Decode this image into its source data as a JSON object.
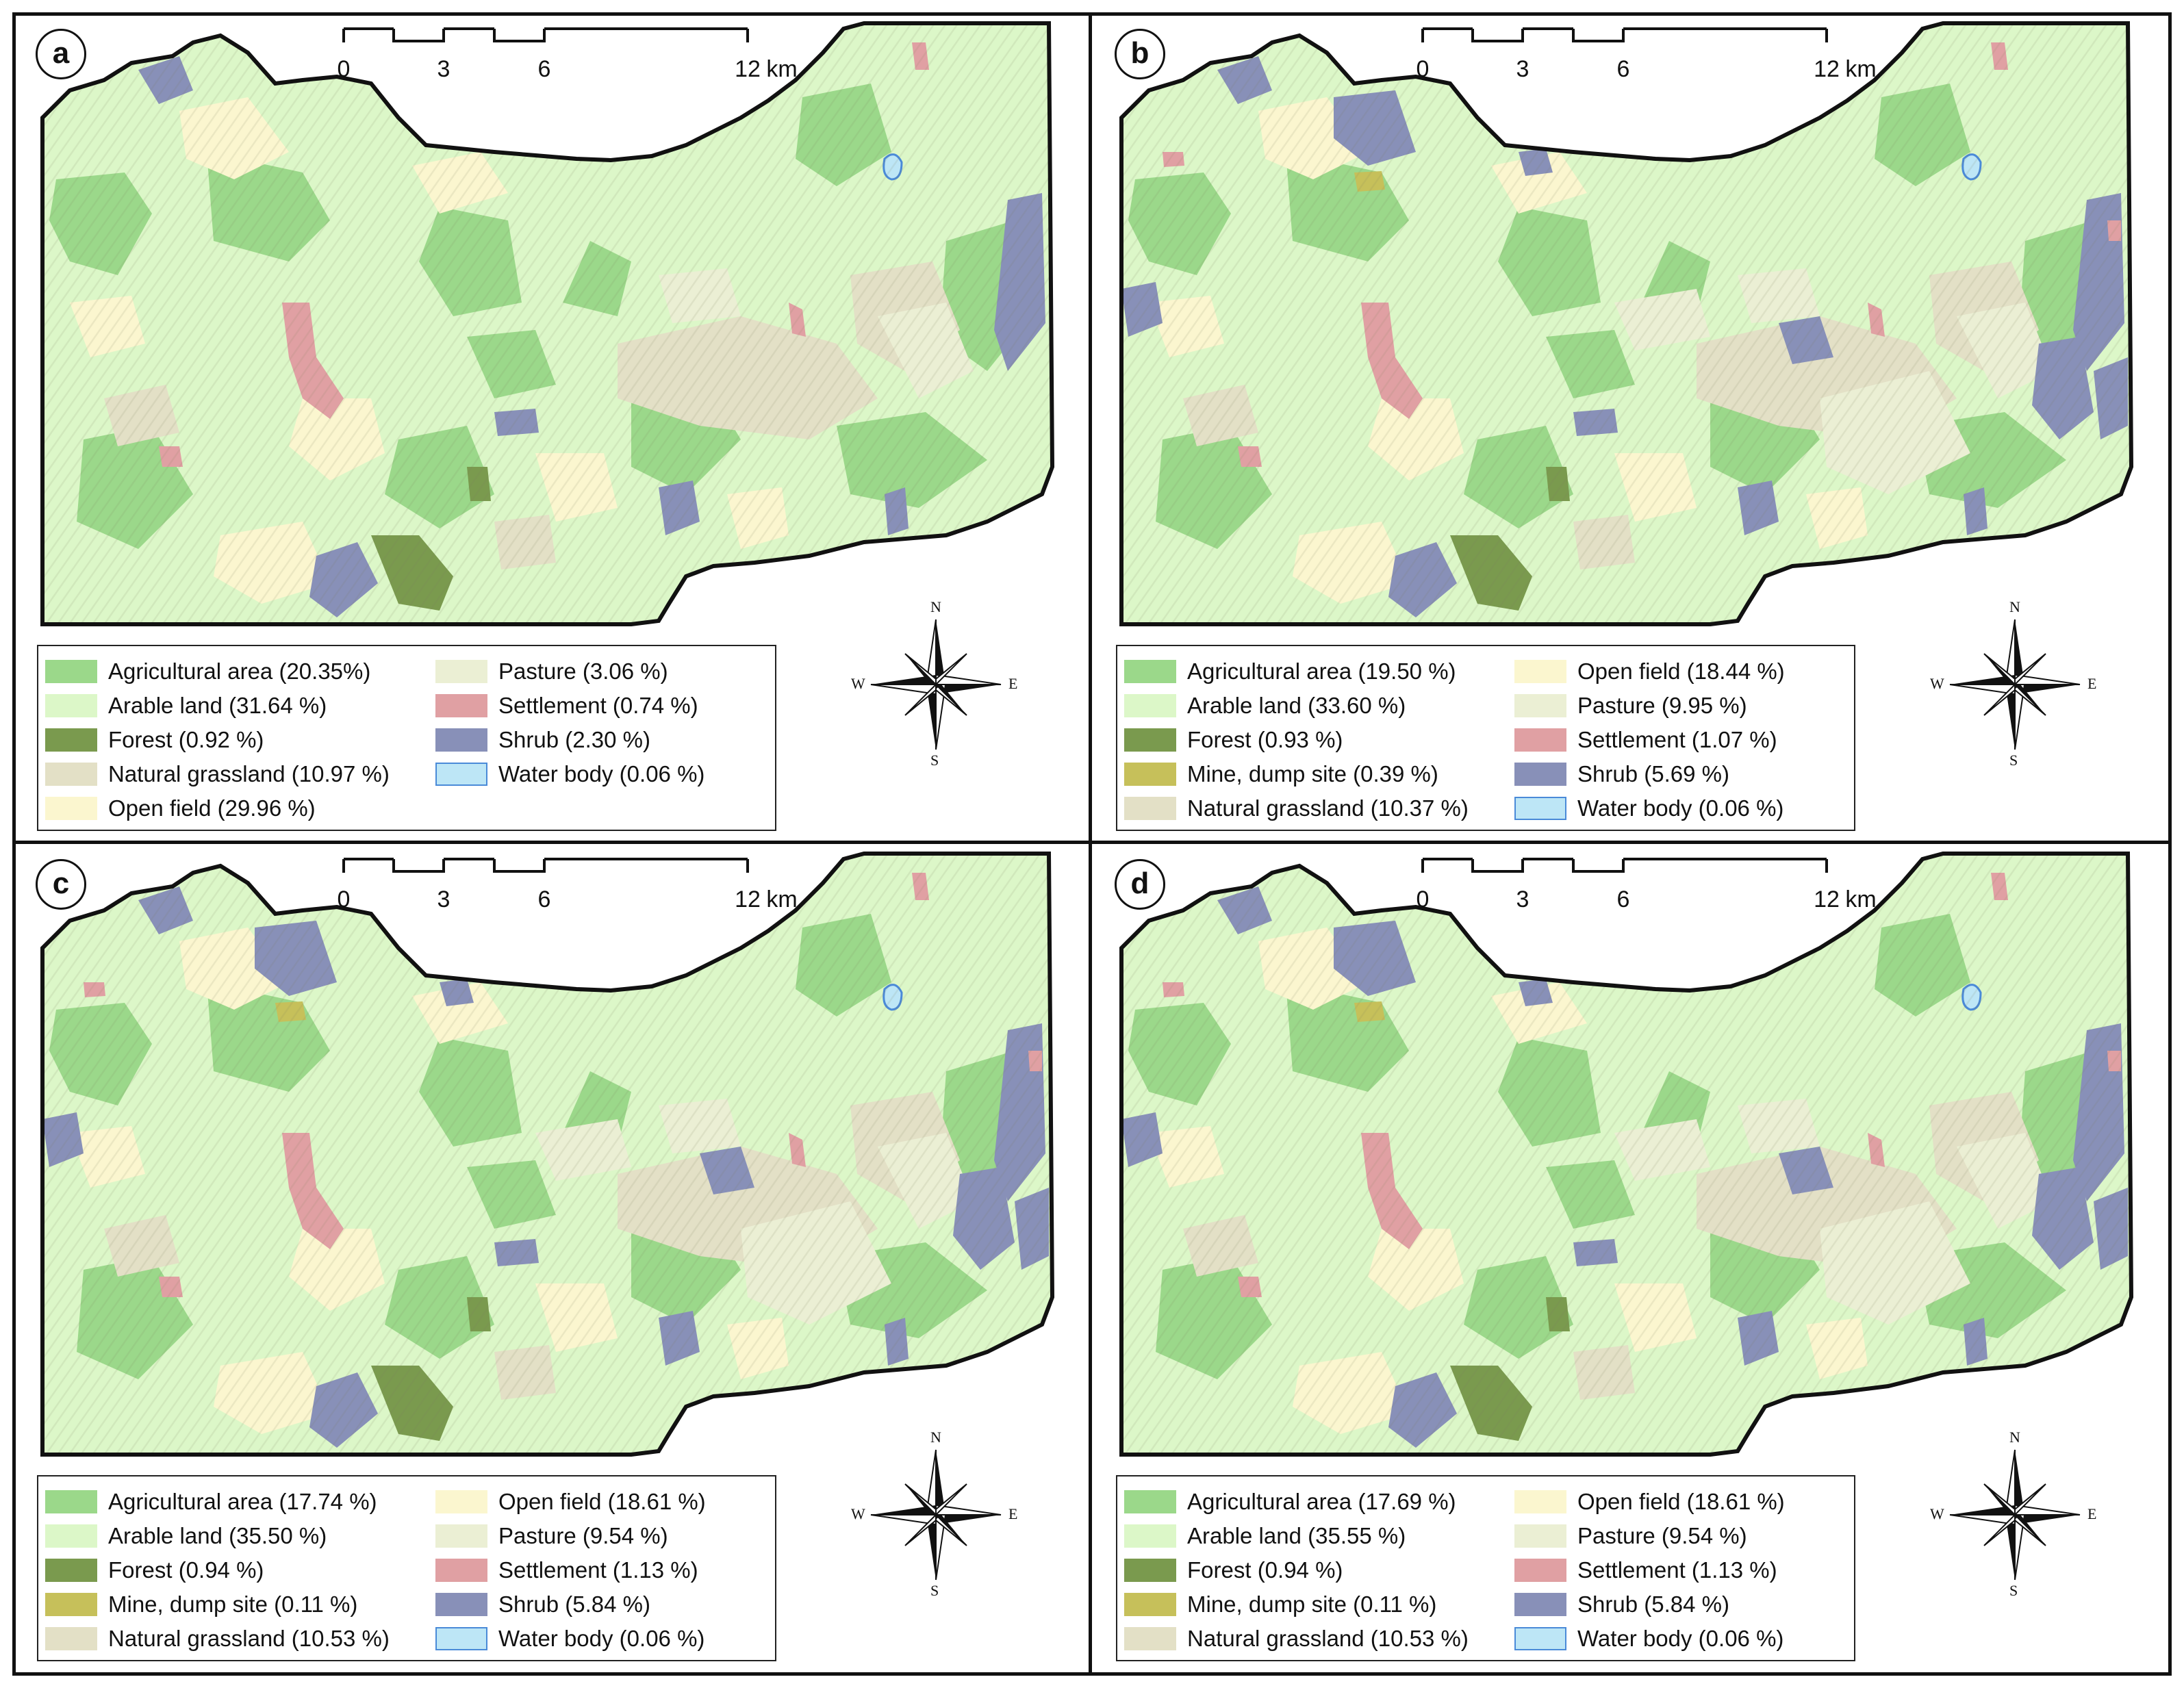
{
  "figure": {
    "panels": [
      {
        "letter": "a",
        "legend": {
          "left": [
            {
              "label": "Agricultural area (20.35%)",
              "color": "#9bd88a"
            },
            {
              "label": "Arable land (31.64 %)",
              "color": "#dcf7c8"
            },
            {
              "label": "Forest (0.92 %)",
              "color": "#7a9a4e"
            },
            {
              "label": "Natural grassland (10.97 %)",
              "color": "#e3e0c6"
            },
            {
              "label": "Open field (29.96 %)",
              "color": "#fbf6cf"
            }
          ],
          "right": [
            {
              "label": "Pasture (3.06 %)",
              "color": "#ebefd4"
            },
            {
              "label": "Settlement (0.74 %)",
              "color": "#e0a0a3"
            },
            {
              "label": "Shrub (2.30 %)",
              "color": "#8890b8"
            },
            {
              "label": "Water body (0.06 %)",
              "color": "#bde6f6"
            }
          ]
        }
      },
      {
        "letter": "b",
        "legend": {
          "left": [
            {
              "label": "Agricultural area (19.50 %)",
              "color": "#9bd88a"
            },
            {
              "label": "Arable land (33.60 %)",
              "color": "#dcf7c8"
            },
            {
              "label": "Forest (0.93 %)",
              "color": "#7a9a4e"
            },
            {
              "label": "Mine, dump site (0.39 %)",
              "color": "#c6c05a"
            },
            {
              "label": "Natural grassland (10.37 %)",
              "color": "#e3e0c6"
            }
          ],
          "right": [
            {
              "label": "Open field (18.44 %)",
              "color": "#fbf6cf"
            },
            {
              "label": "Pasture (9.95 %)",
              "color": "#ebefd4"
            },
            {
              "label": "Settlement (1.07 %)",
              "color": "#e0a0a3"
            },
            {
              "label": "Shrub (5.69 %)",
              "color": "#8890b8"
            },
            {
              "label": "Water body (0.06 %)",
              "color": "#bde6f6"
            }
          ]
        }
      },
      {
        "letter": "c",
        "legend": {
          "left": [
            {
              "label": "Agricultural area (17.74 %)",
              "color": "#9bd88a"
            },
            {
              "label": "Arable land (35.50 %)",
              "color": "#dcf7c8"
            },
            {
              "label": "Forest (0.94 %)",
              "color": "#7a9a4e"
            },
            {
              "label": "Mine, dump site (0.11 %)",
              "color": "#c6c05a"
            },
            {
              "label": "Natural grassland (10.53 %)",
              "color": "#e3e0c6"
            }
          ],
          "right": [
            {
              "label": "Open field (18.61 %)",
              "color": "#fbf6cf"
            },
            {
              "label": "Pasture (9.54 %)",
              "color": "#ebefd4"
            },
            {
              "label": "Settlement (1.13 %)",
              "color": "#e0a0a3"
            },
            {
              "label": "Shrub (5.84 %)",
              "color": "#8890b8"
            },
            {
              "label": "Water body (0.06 %)",
              "color": "#bde6f6"
            }
          ]
        }
      },
      {
        "letter": "d",
        "legend": {
          "left": [
            {
              "label": "Agricultural area (17.69 %)",
              "color": "#9bd88a"
            },
            {
              "label": "Arable land (35.55 %)",
              "color": "#dcf7c8"
            },
            {
              "label": "Forest (0.94 %)",
              "color": "#7a9a4e"
            },
            {
              "label": "Mine, dump site (0.11 %)",
              "color": "#c6c05a"
            },
            {
              "label": "Natural grassland (10.53 %)",
              "color": "#e3e0c6"
            }
          ],
          "right": [
            {
              "label": "Open field (18.61 %)",
              "color": "#fbf6cf"
            },
            {
              "label": "Pasture (9.54 %)",
              "color": "#ebefd4"
            },
            {
              "label": "Settlement (1.13 %)",
              "color": "#e0a0a3"
            },
            {
              "label": "Shrub (5.84 %)",
              "color": "#8890b8"
            },
            {
              "label": "Water body (0.06 %)",
              "color": "#bde6f6"
            }
          ]
        }
      }
    ],
    "scale_bar": {
      "ticks": [
        "0",
        "3",
        "6",
        "12"
      ],
      "unit": "km"
    },
    "compass": {
      "n": "N",
      "s": "S",
      "e": "E",
      "w": "W"
    }
  }
}
